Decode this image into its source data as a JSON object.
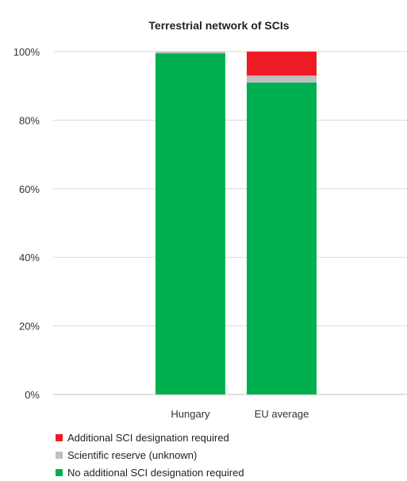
{
  "chart_data": {
    "type": "bar",
    "stacked": true,
    "title": "Terrestrial network of SCIs",
    "categories": [
      "Hungary",
      "EU average"
    ],
    "series": [
      {
        "name": "No additional SCI designation required",
        "color": "#00b050",
        "values": [
          99.5,
          91
        ]
      },
      {
        "name": "Scientific reserve (unknown)",
        "color": "#bfbfbf",
        "values": [
          0.5,
          2
        ]
      },
      {
        "name": "Additional SCI designation required",
        "color": "#ed1c24",
        "values": [
          0,
          7
        ]
      }
    ],
    "ylim": [
      0,
      100
    ],
    "yticks": [
      "0%",
      "20%",
      "40%",
      "60%",
      "80%",
      "100%"
    ],
    "ytick_values": [
      0,
      20,
      40,
      60,
      80,
      100
    ],
    "grid": true,
    "legend_position": "bottom-left"
  }
}
